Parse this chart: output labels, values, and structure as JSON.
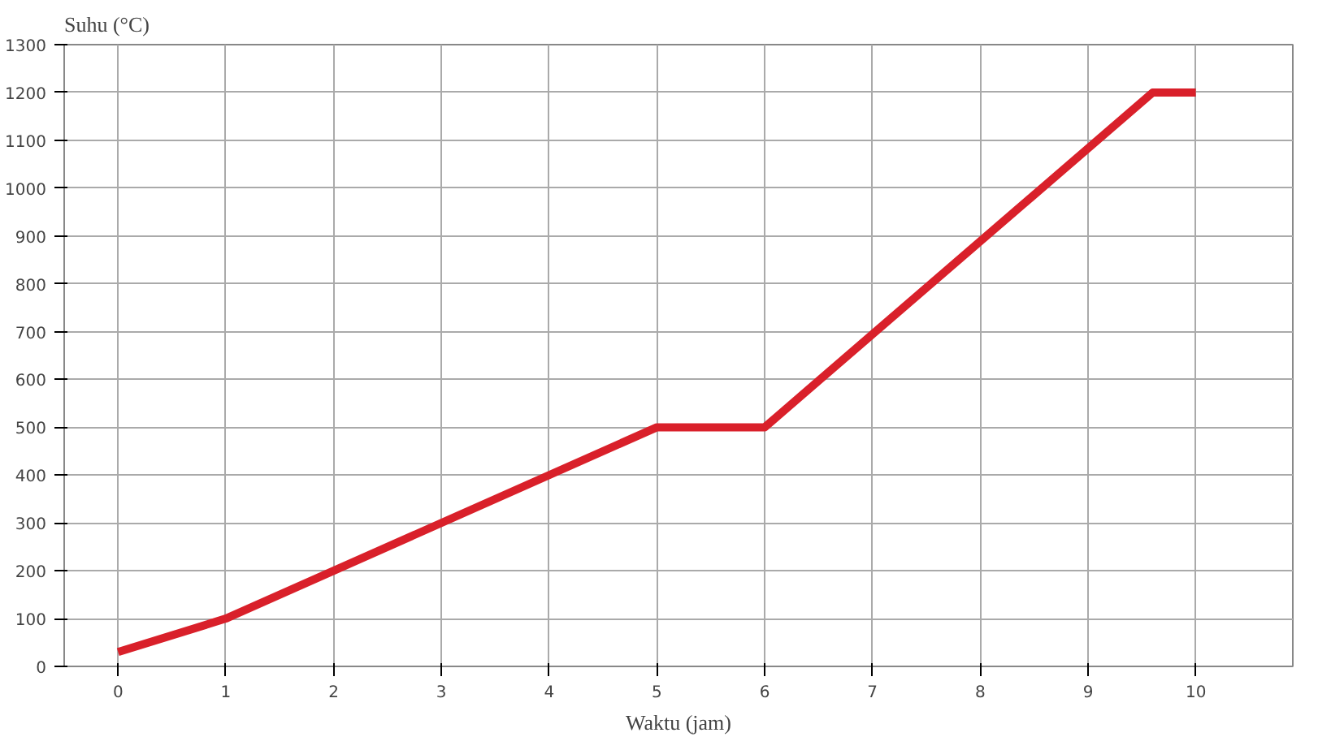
{
  "chart_data": {
    "type": "line",
    "xlabel": "Waktu (jam)",
    "ylabel": "Suhu (°C)",
    "x": [
      0,
      1,
      5,
      6,
      9.6,
      10
    ],
    "series": [
      {
        "color": "#d9202a",
        "values": [
          30,
          100,
          500,
          500,
          1200,
          1200
        ]
      }
    ],
    "xlim": [
      -0.5,
      10.9
    ],
    "xticks": [
      0,
      1,
      2,
      3,
      4,
      5,
      6,
      7,
      8,
      9,
      10
    ],
    "ylim": [
      0,
      1300
    ],
    "yticks": [
      0,
      100,
      200,
      300,
      400,
      500,
      600,
      700,
      800,
      900,
      1000,
      1100,
      1200,
      1300
    ],
    "grid": true,
    "marker": "none",
    "line_style": "solid"
  }
}
